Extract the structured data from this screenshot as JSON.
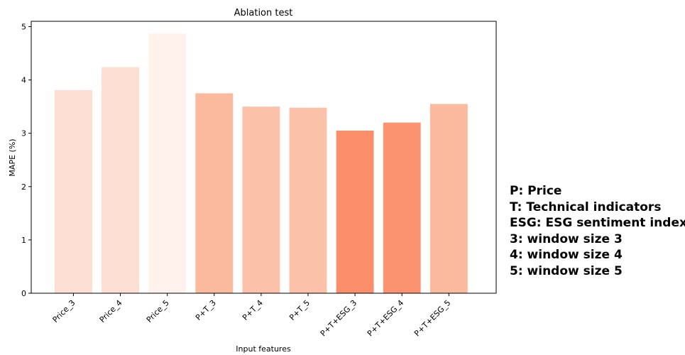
{
  "chart_data": {
    "type": "bar",
    "title": "Ablation test",
    "xlabel": "Input features",
    "ylabel": "MAPE (%)",
    "categories": [
      "Price_3",
      "Price_4",
      "Price_5",
      "P+T_3",
      "P+T_4",
      "P+T_5",
      "P+T+ESG_3",
      "P+T+ESG_4",
      "P+T+ESG_5"
    ],
    "values": [
      3.81,
      4.24,
      4.87,
      3.75,
      3.5,
      3.48,
      3.05,
      3.2,
      3.55
    ],
    "colors": [
      "#fcdfd2",
      "#fcdfd2",
      "#fff1ec",
      "#fbb99d",
      "#fcc2a9",
      "#fcc2a9",
      "#fb8e6a",
      "#fb9270",
      "#fbba9e"
    ],
    "ylim": [
      0,
      5.1
    ],
    "yticks": [
      "0",
      "1",
      "2",
      "3",
      "4",
      "5"
    ],
    "grid": false
  },
  "legend_notes": [
    "P: Price",
    "T: Technical indicators",
    "ESG: ESG sentiment index",
    "3: window size 3",
    "4: window size 4",
    "5: window size 5"
  ]
}
